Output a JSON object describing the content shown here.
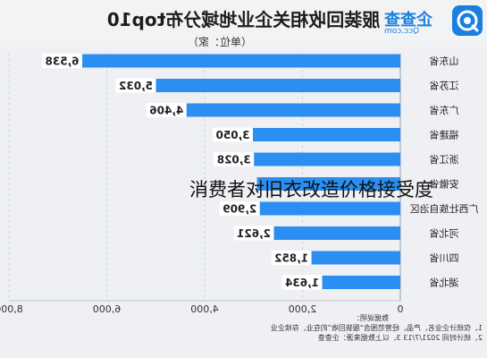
{
  "header": {
    "title": "服装回收相关企业地域分布top10",
    "unit": "（单位：家）"
  },
  "logo": {
    "name": "企查查",
    "domain": "Qcc.com",
    "icon": "qcc-logo-icon",
    "color": "#1a7fe0"
  },
  "overlay_text": "消费者对旧衣改造价格接受度",
  "notes": {
    "heading": "数据说明：",
    "line1": "1、仅统计企业名、产品、经营范围含“服装回收”的在业、存续企业",
    "line2": "2、统计时间 2021/7/13    3、以上数据来源：企查查"
  },
  "chart_data": {
    "type": "bar",
    "orientation": "horizontal-mirrored",
    "categories": [
      "山东省",
      "江苏省",
      "广东省",
      "福建省",
      "浙江省",
      "安徽省",
      "广西壮族自治区",
      "河北省",
      "四川省",
      "湖北省"
    ],
    "values": [
      6538,
      5032,
      4406,
      3050,
      3028,
      2930,
      2909,
      2621,
      1852,
      1634
    ],
    "value_labels": [
      "6,538",
      "5,032",
      "4,406",
      "3,050",
      "3,028",
      "",
      "2,909",
      "2,621",
      "1,852",
      "1,634"
    ],
    "xlim": [
      0,
      8000
    ],
    "xticks": [
      0,
      2000,
      4000,
      6000,
      8000
    ],
    "xtick_labels": [
      "0",
      "2,000",
      "4,000",
      "6,000",
      "8,000"
    ],
    "bar_color": "#2a8ff0",
    "label_bg": "#ffffff",
    "grid": true,
    "title": "服装回收相关企业地域分布top10"
  }
}
